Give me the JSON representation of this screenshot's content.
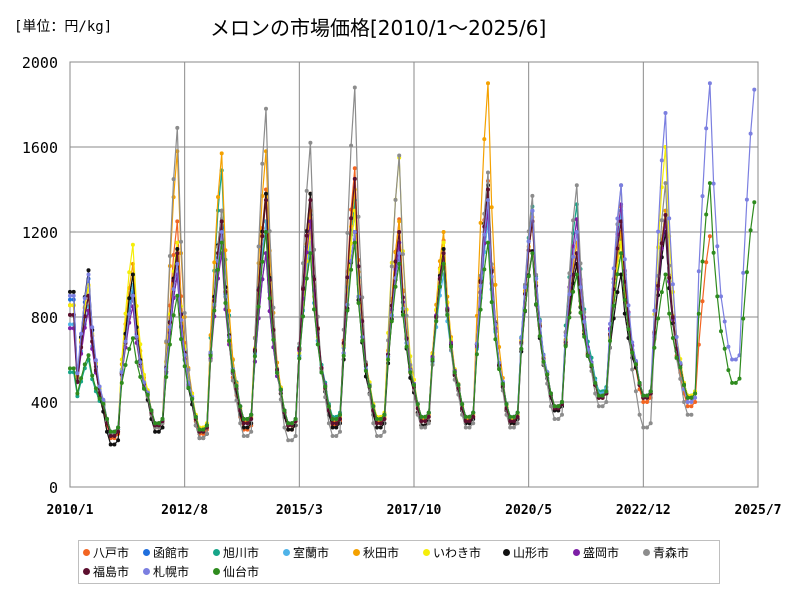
{
  "chart_data": {
    "type": "line",
    "title": "メロンの市場価格[2010/1～2025/6]",
    "unit_label": "[単位：円/kg]",
    "xlabel": "",
    "ylabel": "",
    "ylim": [
      0,
      2000
    ],
    "yticks": [
      "0",
      "400",
      "800",
      "1200",
      "1600",
      "2000"
    ],
    "xticks": [
      "2010/1",
      "2012/8",
      "2015/3",
      "2017/10",
      "2020/5",
      "2022/12",
      "2025/7"
    ],
    "xrange": [
      "2010/1",
      "2025/7"
    ],
    "grid": true,
    "legend_position": "bottom",
    "series": [
      {
        "name": "八戸市",
        "color": "#f26522",
        "start": "2010/1",
        "end": "2024/6",
        "peaks": [
          950,
          950,
          1250,
          1230,
          1400,
          1380,
          1500,
          1260,
          1160,
          1440,
          1250,
          1100,
          1320,
          1280,
          1180
        ],
        "troughs": [
          230,
          280,
          250,
          270,
          270,
          290,
          300,
          290,
          310,
          300,
          380,
          420,
          400,
          380
        ]
      },
      {
        "name": "函館市",
        "color": "#1f6fdd",
        "start": "2010/1",
        "end": "2024/1",
        "peaks": [
          980,
          920,
          1100,
          1220,
          1250,
          1150,
          1300,
          1150,
          1090,
          1300,
          1300,
          1100,
          1300,
          1300,
          1000
        ],
        "troughs": [
          250,
          300,
          270,
          320,
          300,
          320,
          320,
          330,
          330,
          320,
          380,
          430,
          430,
          420
        ]
      },
      {
        "name": "旭川市",
        "color": "#17a589",
        "start": "2010/1",
        "end": "2024/2",
        "peaks": [
          600,
          900,
          1000,
          1490,
          1100,
          1280,
          1350,
          1100,
          1080,
          1250,
          1320,
          1330,
          1180,
          1250,
          1000
        ],
        "troughs": [
          250,
          300,
          260,
          320,
          300,
          330,
          320,
          330,
          330,
          330,
          380,
          450,
          430,
          430
        ]
      },
      {
        "name": "室蘭市",
        "color": "#4fb3e8",
        "start": "2010/1",
        "end": "2024/1",
        "peaks": [
          850,
          950,
          1100,
          1200,
          1250,
          1150,
          1300,
          1100,
          1000,
          1250,
          1300,
          1100,
          1300,
          1300,
          1000
        ],
        "troughs": [
          260,
          300,
          270,
          320,
          300,
          320,
          320,
          330,
          330,
          330,
          380,
          440,
          430,
          420
        ]
      },
      {
        "name": "秋田市",
        "color": "#f4a100",
        "start": "2010/1",
        "end": "2024/2",
        "peaks": [
          950,
          1050,
          1580,
          1570,
          1580,
          1300,
          1400,
          1250,
          1200,
          1900,
          1270,
          1150,
          1200,
          1300,
          1400
        ],
        "troughs": [
          240,
          300,
          260,
          310,
          290,
          310,
          310,
          320,
          320,
          320,
          380,
          420,
          420,
          420
        ]
      },
      {
        "name": "いわき市",
        "color": "#f5ee0a",
        "start": "2010/1",
        "end": "2024/2",
        "peaks": [
          950,
          1140,
          1150,
          1200,
          1350,
          1200,
          1300,
          1550,
          1150,
          1350,
          1250,
          1050,
          1150,
          1600,
          900
        ],
        "troughs": [
          260,
          300,
          280,
          320,
          300,
          320,
          330,
          330,
          330,
          320,
          380,
          430,
          430,
          430
        ]
      },
      {
        "name": "山形市",
        "color": "#111111",
        "start": "2010/1",
        "end": "2023/12",
        "peaks": [
          1020,
          1000,
          1120,
          1300,
          1380,
          1380,
          1200,
          1100,
          1120,
          1420,
          1110,
          1050,
          1000,
          1200,
          900
        ],
        "troughs": [
          200,
          260,
          230,
          280,
          270,
          280,
          280,
          290,
          300,
          300,
          360,
          420,
          420,
          420
        ]
      },
      {
        "name": "盛岡市",
        "color": "#7d1fa6",
        "start": "2010/1",
        "end": "2024/1",
        "peaks": [
          830,
          850,
          1000,
          1100,
          1100,
          1250,
          1200,
          1150,
          1100,
          1300,
          1100,
          1260,
          1330,
          1250,
          1180
        ],
        "troughs": [
          260,
          300,
          270,
          320,
          300,
          320,
          320,
          330,
          330,
          330,
          380,
          430,
          430,
          420
        ]
      },
      {
        "name": "青森市",
        "color": "#8c8c8c",
        "start": "2010/1",
        "end": "2024/1",
        "peaks": [
          900,
          900,
          1690,
          1300,
          1780,
          1620,
          1880,
          1560,
          1100,
          1480,
          1370,
          1420,
          1420,
          1430,
          1000
        ],
        "troughs": [
          250,
          280,
          230,
          240,
          220,
          240,
          240,
          280,
          280,
          280,
          320,
          380,
          280,
          340
        ]
      },
      {
        "name": "福島市",
        "color": "#5c0f2e",
        "start": "2010/1",
        "end": "2024/1",
        "peaks": [
          900,
          900,
          1100,
          1250,
          1350,
          1350,
          1450,
          1200,
          1100,
          1400,
          1250,
          1100,
          1250,
          1280,
          1000
        ],
        "troughs": [
          240,
          290,
          260,
          300,
          290,
          300,
          300,
          310,
          310,
          310,
          370,
          420,
          420,
          420
        ]
      },
      {
        "name": "札幌市",
        "color": "#7b7fe0",
        "start": "2010/1",
        "end": "2025/6",
        "peaks": [
          1000,
          900,
          1050,
          1200,
          1200,
          1100,
          1200,
          1100,
          1050,
          1350,
          1300,
          1200,
          1420,
          1760,
          1900,
          1870
        ],
        "troughs": [
          260,
          300,
          270,
          320,
          300,
          320,
          320,
          330,
          330,
          330,
          380,
          430,
          430,
          400,
          600
        ]
      },
      {
        "name": "仙台市",
        "color": "#2e8b1e",
        "start": "2010/1",
        "end": "2025/6",
        "peaks": [
          620,
          700,
          900,
          1150,
          1200,
          1100,
          1150,
          1050,
          1050,
          1150,
          1100,
          1000,
          1100,
          1000,
          1430,
          1340
        ],
        "troughs": [
          260,
          300,
          270,
          320,
          300,
          320,
          320,
          330,
          330,
          330,
          380,
          430,
          430,
          420,
          490
        ]
      }
    ]
  }
}
